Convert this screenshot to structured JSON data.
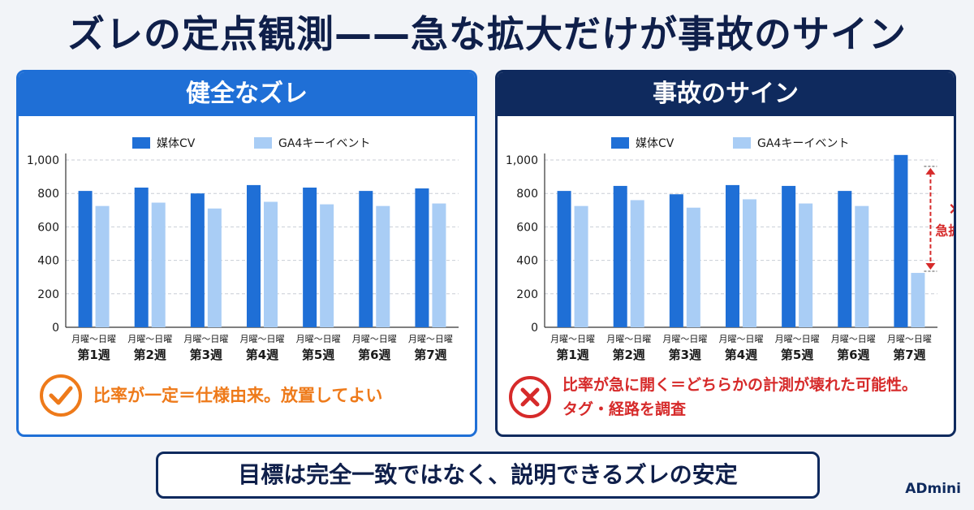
{
  "title": "ズレの定点観測——急な拡大だけが事故のサイン",
  "colors": {
    "primary": "#1f6fd6",
    "secondary": "#a9cdf5",
    "navy": "#0f2a5e",
    "ok": "#ee7a1a",
    "alert": "#d62a2a"
  },
  "panels": {
    "left": {
      "header": "健全なズレ",
      "conclusion": "比率が一定＝仕様由来。放置してよい",
      "icon": "check-icon"
    },
    "right": {
      "header": "事故のサイン",
      "conclusion_line1": "比率が急に開く＝どちらかの計測が壊れた可能性。",
      "conclusion_line2": "タグ・経路を調査",
      "icon": "cross-icon",
      "annotation_mark": "×",
      "annotation_label": "急拡大"
    }
  },
  "bottom_message": "目標は完全一致ではなく、説明できるズレの安定",
  "brand": "ADmini",
  "chart_data": [
    {
      "type": "bar",
      "categories_line1": [
        "月曜～日曜",
        "月曜～日曜",
        "月曜～日曜",
        "月曜～日曜",
        "月曜～日曜",
        "月曜～日曜",
        "月曜～日曜"
      ],
      "categories_line2": [
        "第1週",
        "第2週",
        "第3週",
        "第4週",
        "第5週",
        "第6週",
        "第7週"
      ],
      "series": [
        {
          "name": "媒体CV",
          "values": [
            815,
            835,
            800,
            850,
            835,
            815,
            830
          ]
        },
        {
          "name": "GA4キーイベント",
          "values": [
            725,
            745,
            710,
            750,
            735,
            725,
            740
          ]
        }
      ],
      "yticks": [
        "0",
        "200",
        "400",
        "600",
        "800",
        "1,000"
      ],
      "ylim": [
        0,
        1000
      ],
      "grid": true,
      "legend": "top-center"
    },
    {
      "type": "bar",
      "categories_line1": [
        "月曜～日曜",
        "月曜～日曜",
        "月曜～日曜",
        "月曜～日曜",
        "月曜～日曜",
        "月曜～日曜",
        "月曜～日曜"
      ],
      "categories_line2": [
        "第1週",
        "第2週",
        "第3週",
        "第4週",
        "第5週",
        "第6週",
        "第7週"
      ],
      "series": [
        {
          "name": "媒体CV",
          "values": [
            815,
            845,
            795,
            850,
            845,
            815,
            1030
          ]
        },
        {
          "name": "GA4キーイベント",
          "values": [
            725,
            760,
            715,
            765,
            740,
            725,
            325
          ]
        }
      ],
      "yticks": [
        "0",
        "200",
        "400",
        "600",
        "800",
        "1,000"
      ],
      "ylim": [
        0,
        1000
      ],
      "grid": true,
      "legend": "top-center"
    }
  ]
}
